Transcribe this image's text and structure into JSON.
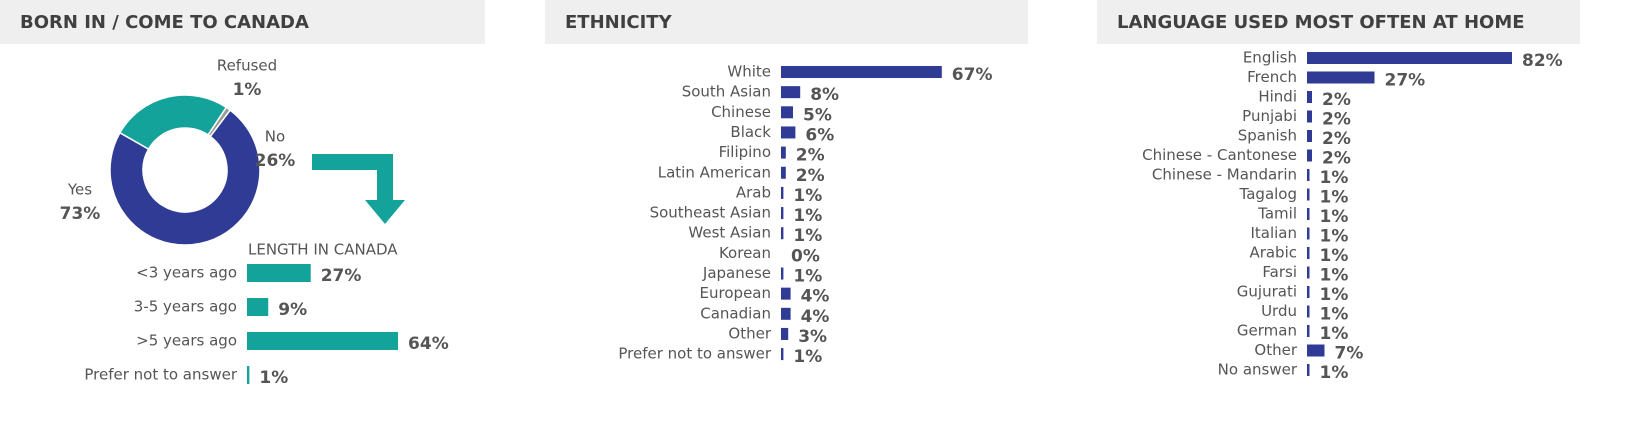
{
  "chart_data": [
    {
      "type": "donut",
      "title": "BORN IN / COME TO CANADA",
      "categories": [
        "Yes",
        "No",
        "Refused"
      ],
      "values": [
        73,
        26,
        1
      ],
      "value_labels": [
        "73%",
        "26%",
        "1%"
      ],
      "colors": [
        "#2f3b94",
        "#14a39a",
        "#9a9a9a"
      ]
    },
    {
      "type": "barh",
      "subtitle": "LENGTH IN CANADA",
      "categories": [
        "<3 years ago",
        "3-5 years ago",
        ">5 years ago",
        "Prefer not to answer"
      ],
      "values": [
        27,
        9,
        64,
        1
      ],
      "value_labels": [
        "27%",
        "9%",
        "64%",
        "1%"
      ],
      "color": "#14a39a"
    },
    {
      "type": "barh",
      "title": "ETHNICITY",
      "categories": [
        "White",
        "South Asian",
        "Chinese",
        "Black",
        "Filipino",
        "Latin American",
        "Arab",
        "Southeast Asian",
        "West Asian",
        "Korean",
        "Japanese",
        "European",
        "Canadian",
        "Other",
        "Prefer not to answer"
      ],
      "values": [
        67,
        8,
        5,
        6,
        2,
        2,
        1,
        1,
        1,
        0,
        1,
        4,
        4,
        3,
        1
      ],
      "value_labels": [
        "67%",
        "8%",
        "5%",
        "6%",
        "2%",
        "2%",
        "1%",
        "1%",
        "1%",
        "0%",
        "1%",
        "4%",
        "4%",
        "3%",
        "1%"
      ],
      "color": "#2f3b94"
    },
    {
      "type": "barh",
      "title": "LANGUAGE USED MOST OFTEN AT HOME",
      "categories": [
        "English",
        "French",
        "Hindi",
        "Punjabi",
        "Spanish",
        "Chinese - Cantonese",
        "Chinese - Mandarin",
        "Tagalog",
        "Tamil",
        "Italian",
        "Arabic",
        "Farsi",
        "Gujurati",
        "Urdu",
        "German",
        "Other",
        "No answer"
      ],
      "values": [
        82,
        27,
        2,
        2,
        2,
        2,
        1,
        1,
        1,
        1,
        1,
        1,
        1,
        1,
        1,
        7,
        1
      ],
      "value_labels": [
        "82%",
        "27%",
        "2%",
        "2%",
        "2%",
        "2%",
        "1%",
        "1%",
        "1%",
        "1%",
        "1%",
        "1%",
        "1%",
        "1%",
        "1%",
        "7%",
        "1%"
      ],
      "color": "#2f3b94"
    }
  ]
}
